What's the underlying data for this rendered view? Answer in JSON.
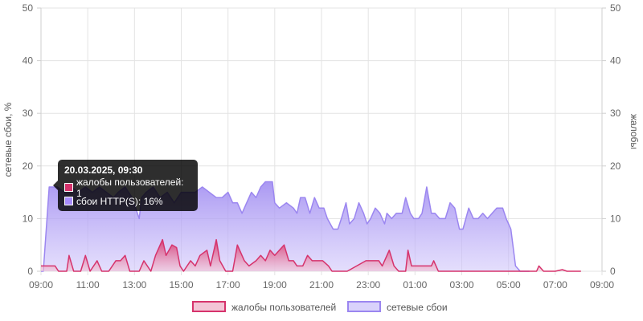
{
  "chart_data": {
    "type": "area",
    "title": "",
    "ylabel_left": "сетевые сбои, %",
    "ylabel_right": "жалобы",
    "xlabel": "",
    "x_ticks": [
      "09:00",
      "11:00",
      "13:00",
      "15:00",
      "17:00",
      "19:00",
      "21:00",
      "23:00",
      "01:00",
      "03:00",
      "05:00",
      "07:00",
      "09:00"
    ],
    "y_ticks": [
      "0",
      "10",
      "20",
      "30",
      "40",
      "50"
    ],
    "ylim_left": [
      0,
      50
    ],
    "ylim_right": [
      0,
      50
    ],
    "grid": true,
    "legend_position": "bottom",
    "x_range_hours": [
      0,
      24
    ],
    "series": [
      {
        "name": "жалобы пользователей",
        "color": "#d6336c",
        "fill": "#f3c4d6",
        "points": [
          [
            0,
            1
          ],
          [
            0.3,
            1
          ],
          [
            0.6,
            1
          ],
          [
            0.75,
            0
          ],
          [
            1.1,
            0
          ],
          [
            1.2,
            3
          ],
          [
            1.4,
            0
          ],
          [
            1.7,
            0
          ],
          [
            1.9,
            3
          ],
          [
            2.1,
            0
          ],
          [
            2.4,
            2
          ],
          [
            2.6,
            0
          ],
          [
            2.9,
            0
          ],
          [
            3.2,
            2
          ],
          [
            3.4,
            2
          ],
          [
            3.6,
            3
          ],
          [
            3.8,
            0
          ],
          [
            4.2,
            0
          ],
          [
            4.4,
            2
          ],
          [
            4.7,
            0
          ],
          [
            4.9,
            3
          ],
          [
            5.2,
            6
          ],
          [
            5.35,
            3
          ],
          [
            5.6,
            5
          ],
          [
            5.8,
            4.5
          ],
          [
            5.95,
            1
          ],
          [
            6.1,
            0
          ],
          [
            6.4,
            2
          ],
          [
            6.6,
            1
          ],
          [
            6.8,
            3
          ],
          [
            7.1,
            4
          ],
          [
            7.25,
            1
          ],
          [
            7.5,
            6
          ],
          [
            7.65,
            2
          ],
          [
            7.9,
            0
          ],
          [
            8.2,
            0
          ],
          [
            8.4,
            5
          ],
          [
            8.7,
            2
          ],
          [
            8.9,
            1
          ],
          [
            9.2,
            2
          ],
          [
            9.4,
            3
          ],
          [
            9.6,
            2
          ],
          [
            9.8,
            4
          ],
          [
            10,
            3
          ],
          [
            10.2,
            4
          ],
          [
            10.4,
            5
          ],
          [
            10.6,
            2
          ],
          [
            10.8,
            2
          ],
          [
            10.95,
            1
          ],
          [
            11.2,
            1
          ],
          [
            11.4,
            3
          ],
          [
            11.6,
            2
          ],
          [
            11.8,
            2
          ],
          [
            12.05,
            2
          ],
          [
            12.3,
            1
          ],
          [
            12.45,
            0
          ],
          [
            12.8,
            0
          ],
          [
            13.1,
            0
          ],
          [
            13.9,
            2
          ],
          [
            14.2,
            2
          ],
          [
            14.45,
            2
          ],
          [
            14.6,
            1
          ],
          [
            14.9,
            4
          ],
          [
            15.1,
            1
          ],
          [
            15.3,
            0
          ],
          [
            15.6,
            0
          ],
          [
            15.7,
            4
          ],
          [
            15.85,
            1
          ],
          [
            16.1,
            1
          ],
          [
            16.4,
            1
          ],
          [
            16.7,
            1
          ],
          [
            16.8,
            2
          ],
          [
            17.0,
            0
          ],
          [
            17.5,
            0
          ],
          [
            19.1,
            0
          ],
          [
            19.5,
            0
          ],
          [
            19.8,
            0
          ],
          [
            20.2,
            0
          ],
          [
            21.2,
            0
          ],
          [
            21.3,
            1
          ],
          [
            21.5,
            0
          ],
          [
            22.0,
            0
          ],
          [
            22.3,
            0.3
          ],
          [
            22.5,
            0
          ],
          [
            23.1,
            0
          ]
        ]
      },
      {
        "name": "сетевые сбои",
        "color": "#9b86f0",
        "fill": "#d2c8fb",
        "points": [
          [
            0,
            0
          ],
          [
            0.1,
            0
          ],
          [
            0.35,
            16
          ],
          [
            0.5,
            16
          ],
          [
            0.7,
            16
          ],
          [
            1,
            15
          ],
          [
            1.3,
            16
          ],
          [
            1.6,
            15
          ],
          [
            1.9,
            16
          ],
          [
            2.2,
            15
          ],
          [
            2.5,
            16
          ],
          [
            2.8,
            15
          ],
          [
            3.1,
            14
          ],
          [
            3.3,
            15
          ],
          [
            3.6,
            16
          ],
          [
            3.9,
            14
          ],
          [
            4.2,
            10
          ],
          [
            4.3,
            14
          ],
          [
            4.5,
            15
          ],
          [
            4.8,
            16
          ],
          [
            5.1,
            14
          ],
          [
            5.4,
            15
          ],
          [
            5.7,
            13
          ],
          [
            6.0,
            15
          ],
          [
            6.3,
            15
          ],
          [
            6.6,
            15
          ],
          [
            6.9,
            16
          ],
          [
            7.2,
            15
          ],
          [
            7.5,
            14
          ],
          [
            7.75,
            14
          ],
          [
            8.0,
            15
          ],
          [
            8.2,
            13
          ],
          [
            8.4,
            13
          ],
          [
            8.6,
            11
          ],
          [
            8.8,
            13
          ],
          [
            9.0,
            15
          ],
          [
            9.2,
            14
          ],
          [
            9.4,
            16
          ],
          [
            9.6,
            17
          ],
          [
            9.9,
            17
          ],
          [
            10.0,
            13
          ],
          [
            10.2,
            12
          ],
          [
            10.5,
            13
          ],
          [
            10.8,
            12
          ],
          [
            10.95,
            11
          ],
          [
            11.1,
            14
          ],
          [
            11.3,
            14
          ],
          [
            11.5,
            11
          ],
          [
            11.7,
            14
          ],
          [
            11.9,
            12
          ],
          [
            12.1,
            12
          ],
          [
            12.25,
            10
          ],
          [
            12.5,
            8
          ],
          [
            12.7,
            8
          ],
          [
            12.85,
            10
          ],
          [
            13.05,
            13
          ],
          [
            13.2,
            9
          ],
          [
            13.4,
            10
          ],
          [
            13.6,
            13
          ],
          [
            13.8,
            11
          ],
          [
            13.95,
            9
          ],
          [
            14.1,
            10
          ],
          [
            14.3,
            12
          ],
          [
            14.5,
            11
          ],
          [
            14.7,
            9
          ],
          [
            14.8,
            11
          ],
          [
            15.0,
            10
          ],
          [
            15.2,
            11
          ],
          [
            15.45,
            11
          ],
          [
            15.6,
            14
          ],
          [
            15.8,
            11
          ],
          [
            15.95,
            10
          ],
          [
            16.15,
            10
          ],
          [
            16.3,
            11
          ],
          [
            16.5,
            16
          ],
          [
            16.7,
            11
          ],
          [
            16.85,
            11
          ],
          [
            17.05,
            10
          ],
          [
            17.3,
            10
          ],
          [
            17.5,
            13
          ],
          [
            17.7,
            12
          ],
          [
            17.9,
            8
          ],
          [
            18.05,
            8
          ],
          [
            18.3,
            12
          ],
          [
            18.5,
            10
          ],
          [
            18.7,
            10
          ],
          [
            18.9,
            11
          ],
          [
            19.1,
            10
          ],
          [
            19.3,
            11
          ],
          [
            19.5,
            12
          ],
          [
            19.75,
            12
          ],
          [
            19.9,
            10
          ],
          [
            20.1,
            8
          ],
          [
            20.3,
            1
          ],
          [
            20.5,
            0
          ],
          [
            20.9,
            0
          ]
        ]
      }
    ],
    "legend": [
      {
        "label": "жалобы пользователей",
        "color": "#d6336c",
        "fill": "#f3c4d6"
      },
      {
        "label": "сетевые сбои",
        "color": "#9b86f0",
        "fill": "#d9d2fb"
      }
    ]
  },
  "tooltip": {
    "title": "20.03.2025, 09:30",
    "row1": "жалобы пользователей: 1",
    "row2": "сбои HTTP(S): 16%",
    "swatch1": "#d6336c",
    "swatch2": "#a78bfa"
  }
}
